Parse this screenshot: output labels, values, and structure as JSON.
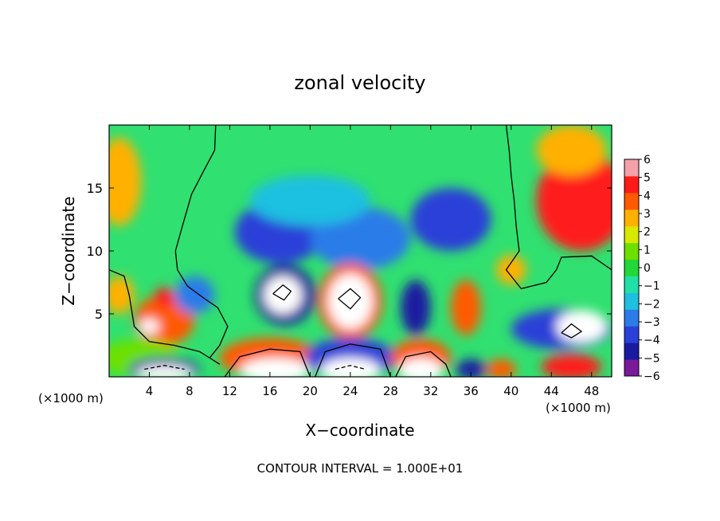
{
  "chart_data": {
    "type": "heatmap",
    "title": "zonal velocity",
    "xlabel": "X−coordinate",
    "ylabel": "Z−coordinate",
    "x_unit_left": "(×1000 m)",
    "x_unit_right": "(×1000 m)",
    "footer": "CONTOUR INTERVAL = 1.000E+01",
    "xlim": [
      0,
      50
    ],
    "ylim": [
      0,
      20
    ],
    "x_ticks": [
      4,
      8,
      12,
      16,
      20,
      24,
      28,
      32,
      36,
      40,
      44,
      48
    ],
    "x_tick_labels": [
      "4",
      "8",
      "12",
      "16",
      "20",
      "24",
      "28",
      "32",
      "36",
      "40",
      "44",
      "48"
    ],
    "y_ticks": [
      5,
      10,
      15
    ],
    "y_tick_labels": [
      "5",
      "10",
      "15"
    ],
    "colorbar": {
      "min": -6,
      "max": 6,
      "ticks": [
        -6,
        -5,
        -4,
        -3,
        -2,
        -1,
        0,
        1,
        2,
        3,
        4,
        5,
        6
      ],
      "tick_labels": [
        "−6",
        "−5",
        "−4",
        "−3",
        "−2",
        "−1",
        "0",
        "1",
        "2",
        "3",
        "4",
        "5",
        "6"
      ],
      "colors": [
        "#7a1a9a",
        "#1a1aa0",
        "#2a40d8",
        "#2b7be8",
        "#1ec0e0",
        "#20e0a8",
        "#22d838",
        "#6ce000",
        "#d8e800",
        "#ffb000",
        "#ff5a00",
        "#ff1a1a",
        "#f4a0a8"
      ]
    },
    "blobs": [
      {
        "x": 1.0,
        "z": 15.5,
        "value": 3,
        "rx": 2.2,
        "rz": 3.5
      },
      {
        "x": 47.0,
        "z": 14.0,
        "value": 5,
        "rx": 4.5,
        "rz": 4.0
      },
      {
        "x": 46.0,
        "z": 18.0,
        "value": 3,
        "rx": 3.5,
        "rz": 2.0
      },
      {
        "x": 17.0,
        "z": 11.5,
        "value": -4,
        "rx": 4.5,
        "rz": 2.5
      },
      {
        "x": 25.0,
        "z": 11.0,
        "value": -3,
        "rx": 5.0,
        "rz": 2.5
      },
      {
        "x": 34.0,
        "z": 12.5,
        "value": -4,
        "rx": 4.0,
        "rz": 2.5
      },
      {
        "x": 20.0,
        "z": 14.0,
        "value": -2,
        "rx": 6.0,
        "rz": 2.0
      },
      {
        "x": 17.5,
        "z": 6.5,
        "value": -5,
        "rx": 3.0,
        "rz": 2.4
      },
      {
        "x": 17.3,
        "z": 6.5,
        "value": 6,
        "rx": 1.9,
        "rz": 1.5
      },
      {
        "x": 24.0,
        "z": 6.0,
        "value": 4,
        "rx": 3.2,
        "rz": 3.0
      },
      {
        "x": 24.0,
        "z": 6.0,
        "value": 6,
        "rx": 2.2,
        "rz": 2.2
      },
      {
        "x": 30.5,
        "z": 5.5,
        "value": -5,
        "rx": 1.5,
        "rz": 2.2
      },
      {
        "x": 35.5,
        "z": 5.5,
        "value": 4,
        "rx": 1.5,
        "rz": 2.2
      },
      {
        "x": 5.5,
        "z": 4.5,
        "value": 4,
        "rx": 3.0,
        "rz": 2.0
      },
      {
        "x": 5.5,
        "z": 6.3,
        "value": 5,
        "rx": 1.0,
        "rz": 0.8
      },
      {
        "x": 4.0,
        "z": 4.0,
        "value": 6,
        "rx": 1.0,
        "rz": 0.6
      },
      {
        "x": 1.0,
        "z": 6.5,
        "value": 3,
        "rx": 1.5,
        "rz": 1.5
      },
      {
        "x": 3.0,
        "z": 1.5,
        "value": 1,
        "rx": 4.0,
        "rz": 1.5
      },
      {
        "x": 5.5,
        "z": 0.6,
        "value": -5,
        "rx": 3.5,
        "rz": 0.9
      },
      {
        "x": 5.5,
        "z": 0.3,
        "value": 6,
        "rx": 2.8,
        "rz": 0.6
      },
      {
        "x": 16.0,
        "z": 1.5,
        "value": 4,
        "rx": 5.0,
        "rz": 1.6
      },
      {
        "x": 16.5,
        "z": 0.5,
        "value": 6,
        "rx": 3.5,
        "rz": 1.0
      },
      {
        "x": 24.0,
        "z": 1.5,
        "value": -4,
        "rx": 4.5,
        "rz": 1.6
      },
      {
        "x": 24.0,
        "z": 0.5,
        "value": 6,
        "rx": 3.0,
        "rz": 1.0
      },
      {
        "x": 31.0,
        "z": 1.5,
        "value": 4,
        "rx": 3.0,
        "rz": 1.5
      },
      {
        "x": 31.0,
        "z": 0.5,
        "value": 6,
        "rx": 2.2,
        "rz": 1.0
      },
      {
        "x": 36.0,
        "z": 0.6,
        "value": -5,
        "rx": 1.5,
        "rz": 0.8
      },
      {
        "x": 39.0,
        "z": 0.6,
        "value": 4,
        "rx": 1.5,
        "rz": 0.8
      },
      {
        "x": 46.0,
        "z": 0.8,
        "value": 5,
        "rx": 3.0,
        "rz": 1.0
      },
      {
        "x": 45.0,
        "z": 3.8,
        "value": -4,
        "rx": 5.0,
        "rz": 1.6
      },
      {
        "x": 47.0,
        "z": 4.0,
        "value": 6,
        "rx": 2.5,
        "rz": 1.3
      },
      {
        "x": 40.0,
        "z": 8.5,
        "value": 3,
        "rx": 1.5,
        "rz": 1.2
      },
      {
        "x": 8.5,
        "z": 6.5,
        "value": -3,
        "rx": 2.0,
        "rz": 1.5
      }
    ],
    "contours": [
      {
        "style": "solid",
        "points": [
          [
            10.6,
            20
          ],
          [
            10.5,
            18
          ],
          [
            9.5,
            16.5
          ],
          [
            8.2,
            14.5
          ],
          [
            7.3,
            12.0
          ],
          [
            6.6,
            10.0
          ],
          [
            6.8,
            8.5
          ],
          [
            7.8,
            7.2
          ],
          [
            9.5,
            6.2
          ],
          [
            10.8,
            5.5
          ],
          [
            11.8,
            4.0
          ],
          [
            11.0,
            2.5
          ],
          [
            10.0,
            1.5
          ]
        ]
      },
      {
        "style": "solid",
        "points": [
          [
            39.5,
            20
          ],
          [
            39.8,
            18
          ],
          [
            40.0,
            16
          ],
          [
            40.3,
            14
          ],
          [
            40.5,
            12
          ],
          [
            40.8,
            10
          ],
          [
            39.5,
            8.5
          ],
          [
            41.0,
            7.0
          ],
          [
            43.5,
            7.5
          ],
          [
            44.5,
            8.5
          ],
          [
            45.0,
            9.5
          ],
          [
            48.0,
            9.6
          ],
          [
            50,
            8.5
          ]
        ]
      },
      {
        "style": "solid",
        "points": [
          [
            0,
            8.5
          ],
          [
            1.5,
            8.0
          ],
          [
            2.0,
            6.5
          ],
          [
            2.5,
            4.0
          ],
          [
            4.0,
            2.8
          ],
          [
            6.5,
            2.5
          ],
          [
            9.0,
            2.0
          ],
          [
            11.0,
            1.0
          ]
        ]
      },
      {
        "style": "solid",
        "points": [
          [
            11.5,
            0
          ],
          [
            13.0,
            1.6
          ],
          [
            16.0,
            2.2
          ],
          [
            19.0,
            2.0
          ],
          [
            20.0,
            0
          ]
        ]
      },
      {
        "style": "solid",
        "points": [
          [
            20.5,
            0
          ],
          [
            21.5,
            2.0
          ],
          [
            24.0,
            2.6
          ],
          [
            27.0,
            2.2
          ],
          [
            28.0,
            0
          ]
        ]
      },
      {
        "style": "solid",
        "points": [
          [
            28.5,
            0
          ],
          [
            29.5,
            1.6
          ],
          [
            32.0,
            2.0
          ],
          [
            33.5,
            1.0
          ],
          [
            34.0,
            0
          ]
        ]
      },
      {
        "style": "solid",
        "points": [
          [
            16.3,
            6.6
          ],
          [
            17.3,
            7.3
          ],
          [
            18.1,
            6.8
          ],
          [
            17.4,
            6.1
          ],
          [
            16.3,
            6.6
          ]
        ]
      },
      {
        "style": "solid",
        "points": [
          [
            22.8,
            6.2
          ],
          [
            24.0,
            7.0
          ],
          [
            25.0,
            6.3
          ],
          [
            24.0,
            5.4
          ],
          [
            22.8,
            6.2
          ]
        ]
      },
      {
        "style": "solid",
        "points": [
          [
            45.0,
            3.5
          ],
          [
            46.0,
            4.2
          ],
          [
            47.0,
            3.6
          ],
          [
            46.0,
            3.1
          ],
          [
            45.0,
            3.5
          ]
        ]
      },
      {
        "style": "dashed",
        "points": [
          [
            3.5,
            0.6
          ],
          [
            5.5,
            0.9
          ],
          [
            7.5,
            0.6
          ]
        ]
      },
      {
        "style": "dashed",
        "points": [
          [
            22.5,
            0.6
          ],
          [
            24.0,
            0.9
          ],
          [
            25.5,
            0.6
          ]
        ]
      }
    ]
  }
}
